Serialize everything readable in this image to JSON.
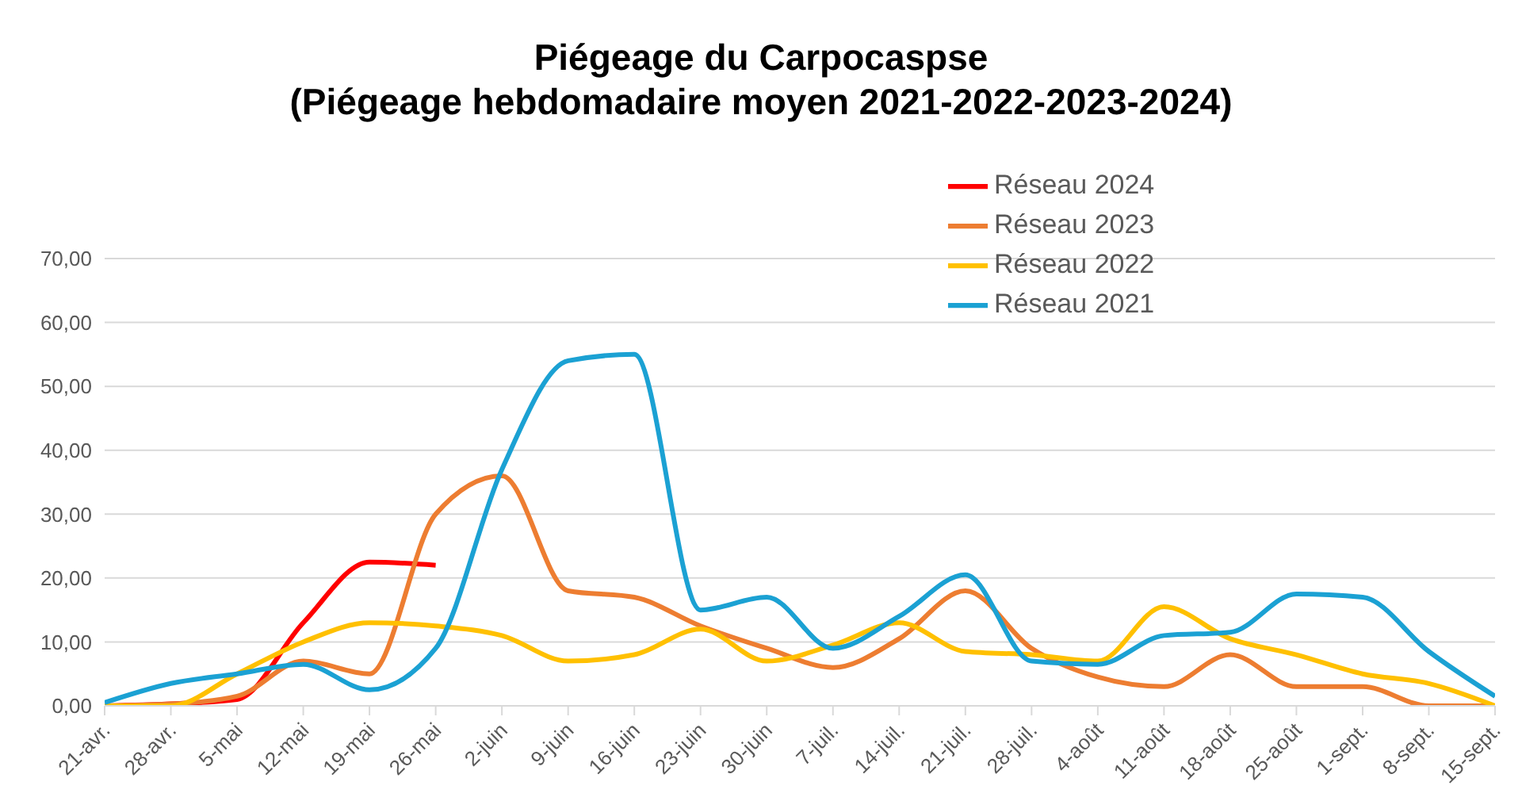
{
  "chart_data": {
    "type": "line",
    "title": "Piégeage du Carpocaspse",
    "subtitle": "(Piégeage hebdomadaire moyen 2021-2022-2023-2024)",
    "categories": [
      "21-avr.",
      "28-avr.",
      "5-mai",
      "12-mai",
      "19-mai",
      "26-mai",
      "2-juin",
      "9-juin",
      "16-juin",
      "23-juin",
      "30-juin",
      "7-juil.",
      "14-juil.",
      "21-juil.",
      "28-juil.",
      "4-août",
      "11-août",
      "18-août",
      "25-août",
      "1-sept.",
      "8-sept.",
      "15-sept."
    ],
    "series": [
      {
        "name": "Réseau 2024",
        "color": "#ff0000",
        "values": [
          0,
          0.3,
          1,
          13,
          22.5,
          22,
          null,
          null,
          null,
          null,
          null,
          null,
          null,
          null,
          null,
          null,
          null,
          null,
          null,
          null,
          null,
          null
        ]
      },
      {
        "name": "Réseau 2023",
        "color": "#ed7d31",
        "values": [
          0,
          0.3,
          1.5,
          7,
          5,
          30,
          36,
          18,
          17,
          12.5,
          9,
          6,
          10.5,
          18,
          9,
          4.5,
          3,
          8,
          3,
          3,
          0,
          0
        ]
      },
      {
        "name": "Réseau 2022",
        "color": "#ffc000",
        "values": [
          0,
          0,
          5,
          10,
          13,
          12.5,
          11,
          7,
          8,
          12,
          7,
          9.5,
          13,
          8.5,
          8,
          7,
          15.5,
          10.5,
          8,
          5,
          3.5,
          0
        ]
      },
      {
        "name": "Réseau 2021",
        "color": "#1ba1d3",
        "values": [
          0.5,
          3.5,
          5,
          6.5,
          2.5,
          9,
          37,
          54,
          55,
          15,
          17,
          9,
          14,
          20.5,
          7,
          6.5,
          11,
          11.5,
          17.5,
          17,
          8.5,
          1.5
        ]
      }
    ],
    "ylim": [
      0,
      70
    ],
    "yticks": [
      {
        "value": 0,
        "label": "0,00"
      },
      {
        "value": 10,
        "label": "10,00"
      },
      {
        "value": 20,
        "label": "20,00"
      },
      {
        "value": 30,
        "label": "30,00"
      },
      {
        "value": 40,
        "label": "40,00"
      },
      {
        "value": 50,
        "label": "50,00"
      },
      {
        "value": 60,
        "label": "60,00"
      },
      {
        "value": 70,
        "label": "70,00"
      }
    ],
    "grid": "y",
    "legend": "top right",
    "marker": "none",
    "line_style": "solid"
  }
}
